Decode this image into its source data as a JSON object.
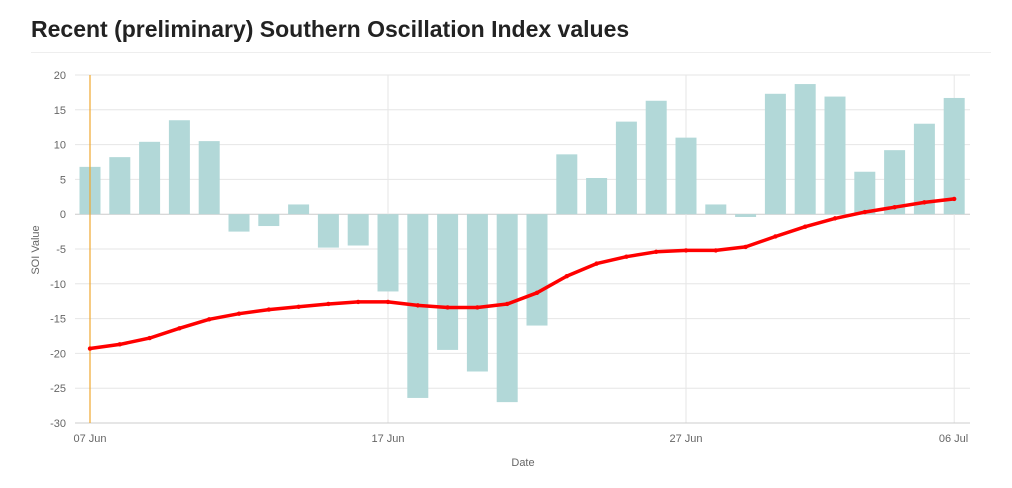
{
  "title": "Recent (preliminary) Southern Oscillation Index values",
  "colors": {
    "bar": "#b2d8d8",
    "line": "#ff0000",
    "marker_line": "#f0a830",
    "grid": "#e6e6e6",
    "text": "#666666"
  },
  "chart_data": {
    "type": "bar",
    "x": [
      "07 Jun",
      "08 Jun",
      "09 Jun",
      "10 Jun",
      "11 Jun",
      "12 Jun",
      "13 Jun",
      "14 Jun",
      "15 Jun",
      "16 Jun",
      "17 Jun",
      "18 Jun",
      "19 Jun",
      "20 Jun",
      "21 Jun",
      "22 Jun",
      "23 Jun",
      "24 Jun",
      "25 Jun",
      "26 Jun",
      "27 Jun",
      "28 Jun",
      "29 Jun",
      "30 Jun",
      "01 Jul",
      "02 Jul",
      "03 Jul",
      "04 Jul",
      "05 Jul",
      "06 Jul"
    ],
    "series": [
      {
        "type": "bar",
        "values": [
          6.8,
          8.2,
          10.4,
          13.5,
          10.5,
          -2.5,
          -1.7,
          1.4,
          -4.8,
          -4.5,
          -11.1,
          -26.4,
          -19.5,
          -22.6,
          -27.0,
          -16.0,
          8.6,
          5.2,
          13.3,
          16.3,
          11.0,
          1.4,
          -0.4,
          17.3,
          18.7,
          16.9,
          6.1,
          9.2,
          13.0,
          16.7
        ]
      },
      {
        "type": "line",
        "values": [
          -19.3,
          -18.7,
          -17.8,
          -16.4,
          -15.1,
          -14.3,
          -13.7,
          -13.3,
          -12.9,
          -12.6,
          -12.6,
          -13.1,
          -13.4,
          -13.4,
          -12.9,
          -11.3,
          -8.9,
          -7.1,
          -6.1,
          -5.4,
          -5.2,
          -5.2,
          -4.7,
          -3.2,
          -1.8,
          -0.6,
          0.3,
          1.0,
          1.7,
          2.2
        ]
      }
    ],
    "x_tick_labels": [
      "07 Jun",
      "17 Jun",
      "27 Jun",
      "06 Jul"
    ],
    "x_tick_indices": [
      0,
      10,
      20,
      29
    ],
    "y_ticks": [
      20,
      15,
      10,
      5,
      0,
      -5,
      -10,
      -15,
      -20,
      -25,
      -30
    ],
    "xlabel": "Date",
    "ylabel": "SOI Value",
    "ylim": [
      -30,
      20
    ],
    "highlight_index": 0,
    "grid": true
  }
}
